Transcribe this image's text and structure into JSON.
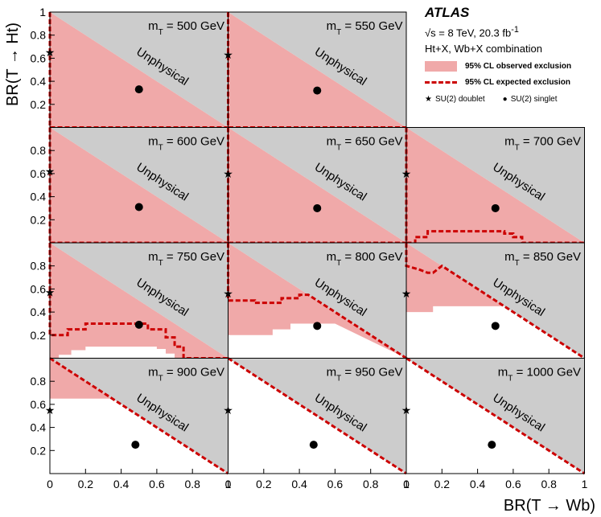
{
  "chart_data": {
    "type": "area",
    "experiment": "ATLAS",
    "energy_label": "√s = 8 TeV, 20.3 fb",
    "energy_sup": "-1",
    "analysis_label": "Ht+X, Wb+X combination",
    "xlabel": "BR(T → Wb)",
    "ylabel": "BR(T → Ht)",
    "xlim": [
      0,
      1
    ],
    "ylim": [
      0,
      1
    ],
    "x_ticks": [
      "0",
      "0.2",
      "0.4",
      "0.6",
      "0.8",
      "1"
    ],
    "y_ticks": [
      "0.2",
      "0.4",
      "0.6",
      "0.8",
      "1"
    ],
    "region_label": "Unphysical",
    "legend": {
      "observed": "95% CL observed exclusion",
      "expected": "95% CL expected exclusion",
      "doublet": "SU(2) doublet",
      "singlet": "SU(2) singlet"
    },
    "colors": {
      "observed": "#f0a9a9",
      "expected": "#cc0000",
      "unphysical": "#cccccc"
    },
    "markers": {
      "doublet": [
        0.0,
        0.6
      ],
      "singlet": [
        0.5,
        0.3
      ]
    },
    "series": [
      {
        "label": "500 GeV",
        "observed_threshold": [
          [
            0,
            0
          ],
          [
            1,
            0
          ]
        ],
        "expected_threshold": [
          [
            0,
            0
          ],
          [
            1,
            0
          ]
        ],
        "doublet_y": 0.65,
        "singlet": [
          0.5,
          0.33
        ]
      },
      {
        "label": "550 GeV",
        "observed_threshold": [
          [
            0,
            0
          ],
          [
            1,
            0
          ]
        ],
        "expected_threshold": [
          [
            0,
            0
          ],
          [
            1,
            0
          ]
        ],
        "doublet_y": 0.63,
        "singlet": [
          0.5,
          0.32
        ]
      },
      {
        "label": "600 GeV",
        "observed_threshold": [
          [
            0,
            0
          ],
          [
            1,
            0
          ]
        ],
        "expected_threshold": [
          [
            0,
            0
          ],
          [
            1,
            0
          ]
        ],
        "doublet_y": 0.62,
        "singlet": [
          0.5,
          0.31
        ]
      },
      {
        "label": "650 GeV",
        "observed_threshold": [
          [
            0,
            0
          ],
          [
            1,
            0
          ]
        ],
        "expected_threshold": [
          [
            0,
            0
          ],
          [
            1,
            0
          ]
        ],
        "doublet_y": 0.6,
        "singlet": [
          0.5,
          0.3
        ]
      },
      {
        "label": "700 GeV",
        "observed_threshold": [
          [
            0,
            0
          ],
          [
            1,
            0
          ]
        ],
        "expected_threshold": [
          [
            0,
            0
          ],
          [
            0.05,
            0
          ],
          [
            0.05,
            0.05
          ],
          [
            0.12,
            0.05
          ],
          [
            0.12,
            0.1
          ],
          [
            0.55,
            0.1
          ],
          [
            0.55,
            0.08
          ],
          [
            0.6,
            0.08
          ],
          [
            0.6,
            0.05
          ],
          [
            0.65,
            0.05
          ],
          [
            0.65,
            0
          ],
          [
            1,
            0
          ]
        ],
        "doublet_y": 0.6,
        "singlet": [
          0.5,
          0.3
        ]
      },
      {
        "label": "750 GeV",
        "observed_threshold": [
          [
            0,
            0
          ],
          [
            0.05,
            0
          ],
          [
            0.05,
            0.03
          ],
          [
            0.12,
            0.03
          ],
          [
            0.12,
            0.07
          ],
          [
            0.2,
            0.07
          ],
          [
            0.2,
            0.1
          ],
          [
            0.5,
            0.1
          ],
          [
            0.5,
            0.1
          ],
          [
            0.6,
            0.1
          ],
          [
            0.6,
            0.08
          ],
          [
            0.65,
            0.08
          ],
          [
            0.65,
            0.04
          ],
          [
            0.7,
            0.04
          ],
          [
            0.7,
            0
          ],
          [
            1,
            0
          ]
        ],
        "expected_threshold": [
          [
            0,
            0.2
          ],
          [
            0.1,
            0.2
          ],
          [
            0.1,
            0.25
          ],
          [
            0.2,
            0.25
          ],
          [
            0.2,
            0.3
          ],
          [
            0.5,
            0.3
          ],
          [
            0.55,
            0.3
          ],
          [
            0.55,
            0.25
          ],
          [
            0.65,
            0.25
          ],
          [
            0.65,
            0.18
          ],
          [
            0.7,
            0.18
          ],
          [
            0.7,
            0.1
          ],
          [
            0.75,
            0.1
          ],
          [
            0.75,
            0
          ],
          [
            1,
            0
          ]
        ],
        "doublet_y": 0.57,
        "singlet": [
          0.5,
          0.29
        ]
      },
      {
        "label": "800 GeV",
        "observed_threshold": [
          [
            0,
            0.2
          ],
          [
            0.25,
            0.2
          ],
          [
            0.25,
            0.25
          ],
          [
            0.35,
            0.25
          ],
          [
            0.35,
            0.3
          ],
          [
            0.6,
            0.3
          ],
          [
            0.6,
            0.3
          ],
          [
            1,
            0
          ]
        ],
        "expected_threshold": [
          [
            0,
            0.5
          ],
          [
            0.15,
            0.5
          ],
          [
            0.15,
            0.48
          ],
          [
            0.3,
            0.48
          ],
          [
            0.3,
            0.52
          ],
          [
            0.4,
            0.52
          ],
          [
            0.4,
            0.55
          ],
          [
            0.45,
            0.55
          ],
          [
            1,
            0
          ]
        ],
        "doublet_y": 0.56,
        "singlet": [
          0.5,
          0.28
        ]
      },
      {
        "label": "850 GeV",
        "observed_threshold": [
          [
            0,
            0.4
          ],
          [
            0.15,
            0.4
          ],
          [
            0.15,
            0.45
          ],
          [
            0.55,
            0.45
          ],
          [
            1,
            0
          ]
        ],
        "expected_threshold": [
          [
            0,
            0.8
          ],
          [
            0.07,
            0.77
          ],
          [
            0.12,
            0.74
          ],
          [
            0.15,
            0.74
          ],
          [
            0.2,
            0.8
          ],
          [
            1,
            0
          ]
        ],
        "doublet_y": 0.56,
        "singlet": [
          0.5,
          0.28
        ]
      },
      {
        "label": "900 GeV",
        "observed_threshold": [
          [
            0,
            0.65
          ],
          [
            0.35,
            0.65
          ],
          [
            1,
            0
          ]
        ],
        "expected_threshold": [
          [
            0,
            1
          ],
          [
            1,
            0
          ]
        ],
        "doublet_y": 0.55,
        "singlet": [
          0.48,
          0.25
        ]
      },
      {
        "label": "950 GeV",
        "observed_threshold": [
          [
            0,
            1
          ],
          [
            1,
            0
          ]
        ],
        "expected_threshold": [
          [
            0,
            1
          ],
          [
            1,
            0
          ]
        ],
        "doublet_y": 0.55,
        "singlet": [
          0.48,
          0.25
        ]
      },
      {
        "label": "1000 GeV",
        "observed_threshold": [
          [
            0,
            1
          ],
          [
            1,
            0
          ]
        ],
        "expected_threshold": [
          [
            0,
            1
          ],
          [
            1,
            0
          ]
        ],
        "doublet_y": 0.55,
        "singlet": [
          0.48,
          0.25
        ]
      }
    ]
  }
}
